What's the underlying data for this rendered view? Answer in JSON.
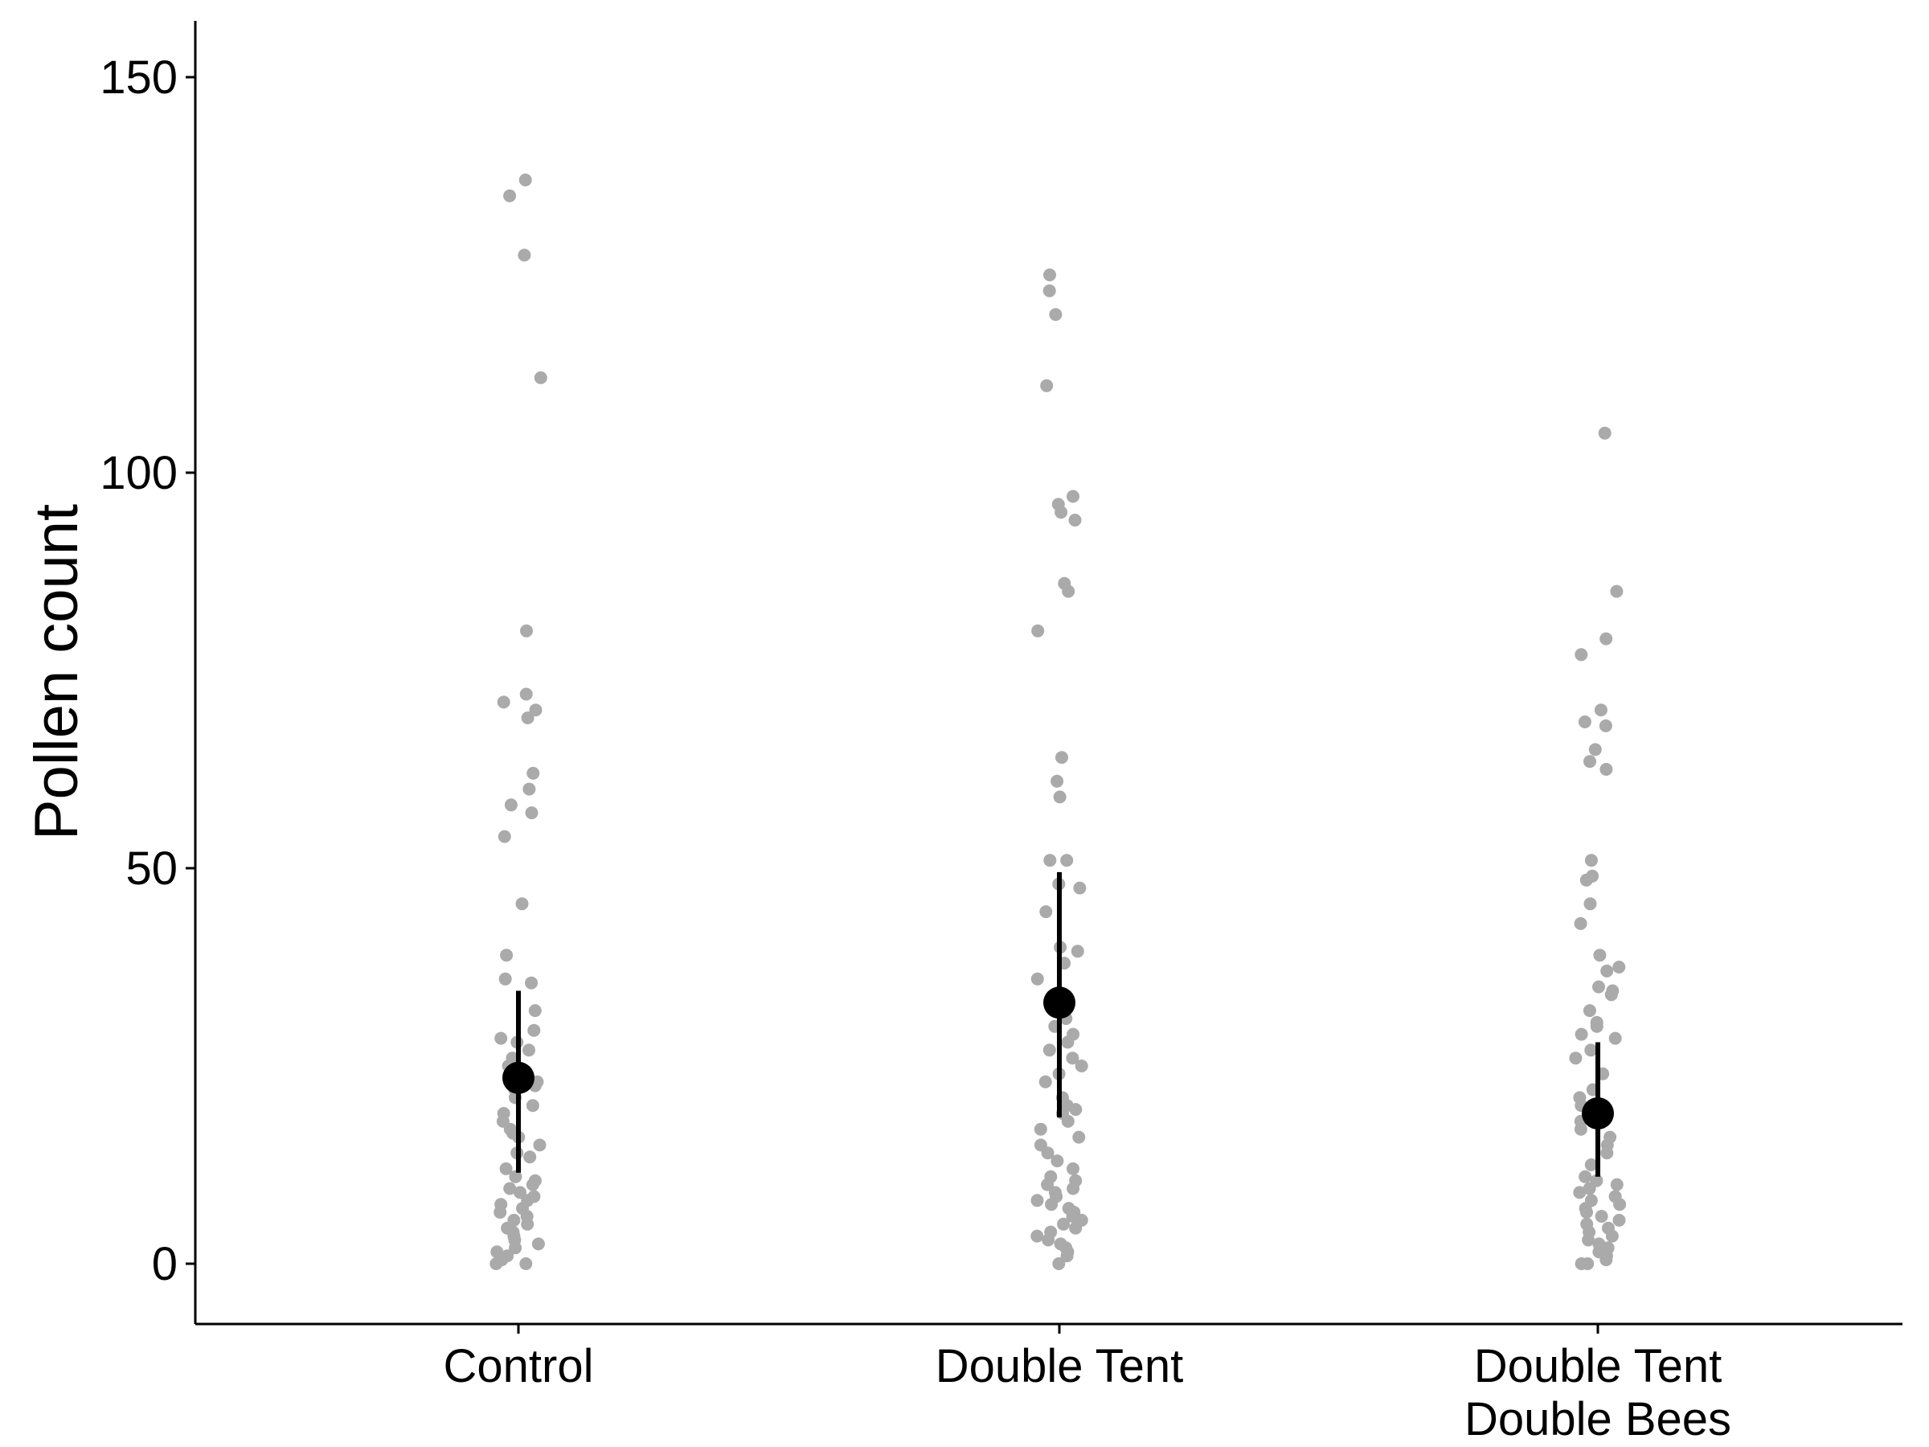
{
  "chart_data": {
    "type": "scatter",
    "subtype": "jittered strip plot with mean and error bars",
    "title": "",
    "xlabel": "",
    "ylabel": "Pollen count",
    "categories": [
      "Control",
      "Double Tent",
      "Double Tent\nDouble Bees"
    ],
    "y_ticks": [
      0,
      50,
      100,
      150
    ],
    "ylim": [
      -7.5,
      157.5
    ],
    "grid": false,
    "legend": "none",
    "colors": {
      "points": "#aaaaaa",
      "summary": "#000000",
      "axes": "#000000"
    },
    "summary": [
      {
        "category": "Control",
        "mean": 23.5,
        "lower": 11.5,
        "upper": 34.5
      },
      {
        "category": "Double Tent",
        "mean": 33,
        "lower": 18.5,
        "upper": 49.5
      },
      {
        "category": "Double Tent\nDouble Bees",
        "mean": 19,
        "lower": 11,
        "upper": 28
      }
    ],
    "points": [
      {
        "category": "Control",
        "values": [
          137,
          135,
          127.5,
          112,
          80,
          72,
          71,
          70,
          69,
          62,
          60,
          58,
          57,
          54,
          45.5,
          39,
          36,
          35.5,
          32,
          29.5,
          28.5,
          28,
          27,
          26,
          25,
          24,
          23,
          22.5,
          22,
          21,
          20,
          19,
          18,
          17,
          16.5,
          16,
          15,
          14,
          13.5,
          12,
          11,
          10.5,
          10,
          9.5,
          9,
          8.5,
          8,
          7.5,
          7,
          6.5,
          6,
          5.5,
          5,
          4.5,
          4,
          3.5,
          3,
          2.5,
          2,
          1.5,
          1,
          0.5,
          0,
          0
        ]
      },
      {
        "category": "Double Tent",
        "values": [
          125,
          123,
          120,
          111,
          97,
          96,
          95,
          94,
          86,
          85,
          80,
          64,
          61,
          59,
          51,
          51,
          48,
          47.5,
          44.5,
          40,
          39.5,
          38,
          36,
          33,
          31,
          30,
          29,
          28,
          27,
          26,
          25,
          24,
          23,
          21,
          20,
          19.5,
          19,
          18,
          17,
          16,
          15,
          14,
          13,
          12,
          11,
          10.5,
          10,
          9.5,
          9,
          8.5,
          8,
          7.5,
          7,
          6.5,
          6,
          5.5,
          5,
          4.5,
          4,
          3.5,
          3,
          2.5,
          2,
          1.5,
          1,
          0
        ]
      },
      {
        "category": "Double Tent\nDouble Bees",
        "values": [
          105,
          85,
          79,
          77,
          70,
          68.5,
          68,
          65,
          63.5,
          62.5,
          51,
          49,
          48.5,
          45.5,
          43,
          39,
          37.5,
          37,
          35,
          34.5,
          34,
          32,
          30.5,
          30,
          29,
          28.5,
          27,
          26,
          24,
          22,
          21,
          20,
          18,
          17,
          16,
          15,
          14,
          12.5,
          11,
          10.5,
          10,
          9.5,
          9,
          8.5,
          8,
          7.5,
          7,
          6.5,
          6,
          5.5,
          5,
          4.5,
          4,
          3.5,
          3,
          2.5,
          2,
          1.5,
          1,
          0.5,
          0,
          0
        ]
      }
    ]
  }
}
